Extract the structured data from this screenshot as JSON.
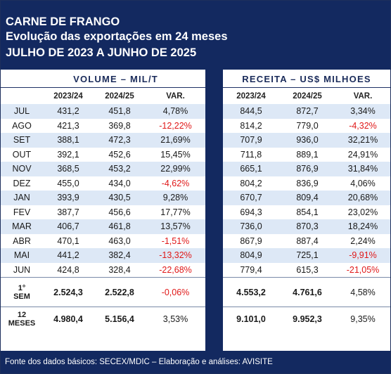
{
  "header": {
    "line1": "CARNE DE FRANGO",
    "line2": "Evolução das exportações em 24 meses",
    "line3": "JULHO DE 2023 A JUNHO DE 2025"
  },
  "groups": {
    "volume": "VOLUME – MIL/T",
    "receita": "RECEITA – US$ MILHOES"
  },
  "col_headers": {
    "v_prev": "2023/24",
    "v_cur": "2024/25",
    "v_var": "VAR.",
    "r_prev": "2023/24",
    "r_cur": "2024/25",
    "r_var": "VAR."
  },
  "rows": [
    {
      "label": "JUL",
      "v_prev": "431,2",
      "v_cur": "451,8",
      "v_var": "4,78%",
      "r_prev": "844,5",
      "r_cur": "872,7",
      "r_var": "3,34%"
    },
    {
      "label": "AGO",
      "v_prev": "421,3",
      "v_cur": "369,8",
      "v_var": "-12,22%",
      "r_prev": "814,2",
      "r_cur": "779,0",
      "r_var": "-4,32%"
    },
    {
      "label": "SET",
      "v_prev": "388,1",
      "v_cur": "472,3",
      "v_var": "21,69%",
      "r_prev": "707,9",
      "r_cur": "936,0",
      "r_var": "32,21%"
    },
    {
      "label": "OUT",
      "v_prev": "392,1",
      "v_cur": "452,6",
      "v_var": "15,45%",
      "r_prev": "711,8",
      "r_cur": "889,1",
      "r_var": "24,91%"
    },
    {
      "label": "NOV",
      "v_prev": "368,5",
      "v_cur": "453,2",
      "v_var": "22,99%",
      "r_prev": "665,1",
      "r_cur": "876,9",
      "r_var": "31,84%"
    },
    {
      "label": "DEZ",
      "v_prev": "455,0",
      "v_cur": "434,0",
      "v_var": "-4,62%",
      "r_prev": "804,2",
      "r_cur": "836,9",
      "r_var": "4,06%"
    },
    {
      "label": "JAN",
      "v_prev": "393,9",
      "v_cur": "430,5",
      "v_var": "9,28%",
      "r_prev": "670,7",
      "r_cur": "809,4",
      "r_var": "20,68%"
    },
    {
      "label": "FEV",
      "v_prev": "387,7",
      "v_cur": "456,6",
      "v_var": "17,77%",
      "r_prev": "694,3",
      "r_cur": "854,1",
      "r_var": "23,02%"
    },
    {
      "label": "MAR",
      "v_prev": "406,7",
      "v_cur": "461,8",
      "v_var": "13,57%",
      "r_prev": "736,0",
      "r_cur": "870,3",
      "r_var": "18,24%"
    },
    {
      "label": "ABR",
      "v_prev": "470,1",
      "v_cur": "463,0",
      "v_var": "-1,51%",
      "r_prev": "867,9",
      "r_cur": "887,4",
      "r_var": "2,24%"
    },
    {
      "label": "MAI",
      "v_prev": "441,2",
      "v_cur": "382,4",
      "v_var": "-13,32%",
      "r_prev": "804,9",
      "r_cur": "725,1",
      "r_var": "-9,91%"
    },
    {
      "label": "JUN",
      "v_prev": "424,8",
      "v_cur": "328,4",
      "v_var": "-22,68%",
      "r_prev": "779,4",
      "r_cur": "615,3",
      "r_var": "-21,05%"
    }
  ],
  "totals": [
    {
      "label_top": "1°",
      "label_bot": "SEM",
      "v_prev": "2.524,3",
      "v_cur": "2.522,8",
      "v_var": "-0,06%",
      "r_prev": "4.553,2",
      "r_cur": "4.761,6",
      "r_var": "4,58%"
    },
    {
      "label_top": "12",
      "label_bot": "MESES",
      "v_prev": "4.980,4",
      "v_cur": "5.156,4",
      "v_var": "3,53%",
      "r_prev": "9.101,0",
      "r_cur": "9.952,3",
      "r_var": "9,35%"
    }
  ],
  "footer": "Fonte dos dados básicos: SECEX/MDIC – Elaboração e análises: AVISITE",
  "colors": {
    "navy": "#132960",
    "stripe": "#dde8f6",
    "negative": "#e01818"
  }
}
